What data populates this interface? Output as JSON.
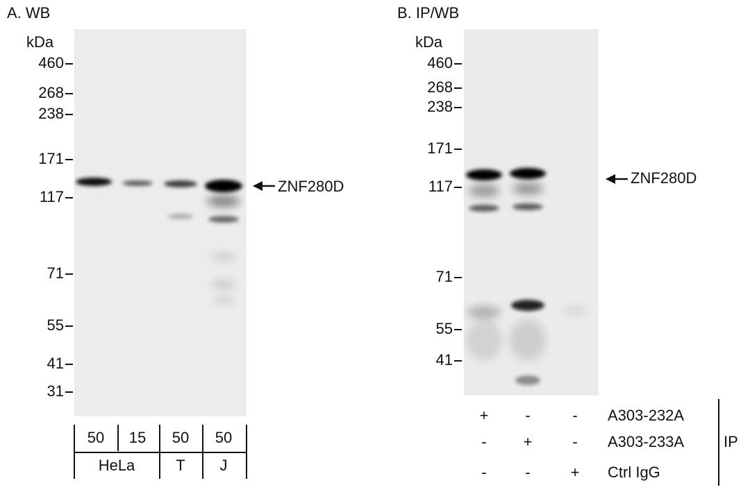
{
  "panels": [
    {
      "label": "A. WB",
      "unit": "kDa",
      "markers": [
        "460",
        "268",
        "238",
        "171",
        "117",
        "71",
        "55",
        "41",
        "31"
      ],
      "target": "ZNF280D",
      "lanes": [
        "50",
        "15",
        "50",
        "50"
      ],
      "groups": [
        "HeLa",
        "T",
        "J"
      ]
    },
    {
      "label": "B. IP/WB",
      "unit": "kDa",
      "markers": [
        "460",
        "268",
        "238",
        "171",
        "117",
        "71",
        "55",
        "41"
      ],
      "target": "ZNF280D",
      "ip_rows": [
        {
          "name": "A303-232A",
          "signs": [
            "+",
            "-",
            "-"
          ]
        },
        {
          "name": "A303-233A",
          "signs": [
            "-",
            "+",
            "-"
          ]
        },
        {
          "name": "Ctrl IgG",
          "signs": [
            "-",
            "-",
            "+"
          ]
        }
      ],
      "ip_label": "IP"
    }
  ]
}
